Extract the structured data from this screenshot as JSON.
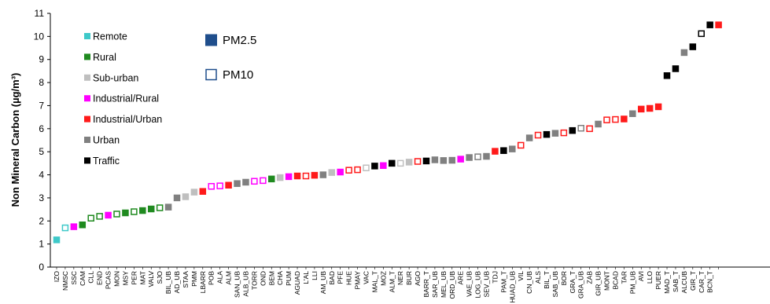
{
  "chart_data": {
    "type": "scatter",
    "ylabel": "Non Mineral Carbon (µg/m³)",
    "ylim": [
      0,
      11
    ],
    "yticks": [
      0,
      1,
      2,
      3,
      4,
      5,
      6,
      7,
      8,
      9,
      10,
      11
    ],
    "grid": false,
    "categories_legend": [
      {
        "name": "Remote",
        "color": "#3ec9c9"
      },
      {
        "name": "Rural",
        "color": "#1f8a1f"
      },
      {
        "name": "Sub-urban",
        "color": "#bfbfbf"
      },
      {
        "name": "Industrial/Rural",
        "color": "#ff00ff"
      },
      {
        "name": "Industrial/Urban",
        "color": "#ff1a1a"
      },
      {
        "name": "Urban",
        "color": "#808080"
      },
      {
        "name": "Traffic",
        "color": "#000000"
      }
    ],
    "pm_legend": [
      {
        "name": "PM2.5",
        "fill": "filled",
        "color": "#1f4e8c"
      },
      {
        "name": "PM10",
        "fill": "open",
        "color": "#1f4e8c"
      }
    ],
    "points": [
      {
        "label": "IZO",
        "y": 1.18,
        "cat": "Remote",
        "pm": "PM2.5"
      },
      {
        "label": "NMSC",
        "y": 1.7,
        "cat": "Remote",
        "pm": "PM10"
      },
      {
        "label": "SSC",
        "y": 1.75,
        "cat": "Industrial/Rural",
        "pm": "PM2.5"
      },
      {
        "label": "CAM",
        "y": 1.83,
        "cat": "Rural",
        "pm": "PM2.5"
      },
      {
        "label": "CLL",
        "y": 2.12,
        "cat": "Rural",
        "pm": "PM10"
      },
      {
        "label": "END",
        "y": 2.2,
        "cat": "Rural",
        "pm": "PM10"
      },
      {
        "label": "PCAS",
        "y": 2.25,
        "cat": "Industrial/Rural",
        "pm": "PM2.5"
      },
      {
        "label": "MON",
        "y": 2.3,
        "cat": "Rural",
        "pm": "PM10"
      },
      {
        "label": "MSY",
        "y": 2.35,
        "cat": "Rural",
        "pm": "PM2.5"
      },
      {
        "label": "PER",
        "y": 2.4,
        "cat": "Rural",
        "pm": "PM10"
      },
      {
        "label": "MAT",
        "y": 2.45,
        "cat": "Rural",
        "pm": "PM2.5"
      },
      {
        "label": "VALV",
        "y": 2.52,
        "cat": "Rural",
        "pm": "PM2.5"
      },
      {
        "label": "SJO",
        "y": 2.57,
        "cat": "Rural",
        "pm": "PM10"
      },
      {
        "label": "BIL_UB",
        "y": 2.6,
        "cat": "Urban",
        "pm": "PM2.5"
      },
      {
        "label": "AD_UB",
        "y": 3.0,
        "cat": "Urban",
        "pm": "PM2.5"
      },
      {
        "label": "STAA",
        "y": 3.05,
        "cat": "Sub-urban",
        "pm": "PM2.5"
      },
      {
        "label": "PMM",
        "y": 3.25,
        "cat": "Sub-urban",
        "pm": "PM2.5"
      },
      {
        "label": "LBARR",
        "y": 3.28,
        "cat": "Industrial/Urban",
        "pm": "PM2.5"
      },
      {
        "label": "POB",
        "y": 3.5,
        "cat": "Industrial/Rural",
        "pm": "PM10"
      },
      {
        "label": "ALA",
        "y": 3.52,
        "cat": "Industrial/Rural",
        "pm": "PM10"
      },
      {
        "label": "ALM",
        "y": 3.55,
        "cat": "Industrial/Urban",
        "pm": "PM2.5"
      },
      {
        "label": "SAN_UB",
        "y": 3.62,
        "cat": "Urban",
        "pm": "PM2.5"
      },
      {
        "label": "ALB_UB",
        "y": 3.68,
        "cat": "Urban",
        "pm": "PM2.5"
      },
      {
        "label": "TORR",
        "y": 3.72,
        "cat": "Industrial/Rural",
        "pm": "PM10"
      },
      {
        "label": "OND",
        "y": 3.75,
        "cat": "Industrial/Rural",
        "pm": "PM10"
      },
      {
        "label": "BEM",
        "y": 3.82,
        "cat": "Rural",
        "pm": "PM2.5"
      },
      {
        "label": "CHA",
        "y": 3.88,
        "cat": "Sub-urban",
        "pm": "PM2.5"
      },
      {
        "label": "PUM",
        "y": 3.92,
        "cat": "Industrial/Rural",
        "pm": "PM2.5"
      },
      {
        "label": "AGUAD",
        "y": 3.95,
        "cat": "Industrial/Urban",
        "pm": "PM2.5"
      },
      {
        "label": "L'AL",
        "y": 3.95,
        "cat": "Industrial/Urban",
        "pm": "PM10"
      },
      {
        "label": "LLI",
        "y": 3.98,
        "cat": "Industrial/Urban",
        "pm": "PM2.5"
      },
      {
        "label": "AM_UB",
        "y": 4.0,
        "cat": "Urban",
        "pm": "PM2.5"
      },
      {
        "label": "BAD",
        "y": 4.1,
        "cat": "Sub-urban",
        "pm": "PM2.5"
      },
      {
        "label": "PFE",
        "y": 4.12,
        "cat": "Industrial/Rural",
        "pm": "PM2.5"
      },
      {
        "label": "HUE",
        "y": 4.2,
        "cat": "Industrial/Urban",
        "pm": "PM10"
      },
      {
        "label": "PMAY",
        "y": 4.22,
        "cat": "Industrial/Urban",
        "pm": "PM10"
      },
      {
        "label": "VAC",
        "y": 4.3,
        "cat": "Sub-urban",
        "pm": "PM10"
      },
      {
        "label": "MAL_T",
        "y": 4.38,
        "cat": "Traffic",
        "pm": "PM2.5"
      },
      {
        "label": "MOZ",
        "y": 4.4,
        "cat": "Industrial/Rural",
        "pm": "PM2.5"
      },
      {
        "label": "ALM_T",
        "y": 4.5,
        "cat": "Traffic",
        "pm": "PM2.5"
      },
      {
        "label": "NER",
        "y": 4.5,
        "cat": "Sub-urban",
        "pm": "PM10"
      },
      {
        "label": "BUR",
        "y": 4.55,
        "cat": "Sub-urban",
        "pm": "PM2.5"
      },
      {
        "label": "AGO",
        "y": 4.58,
        "cat": "Industrial/Urban",
        "pm": "PM10"
      },
      {
        "label": "BARR_T",
        "y": 4.6,
        "cat": "Traffic",
        "pm": "PM2.5"
      },
      {
        "label": "SAR_UB",
        "y": 4.65,
        "cat": "Urban",
        "pm": "PM2.5"
      },
      {
        "label": "MEL_UB",
        "y": 4.62,
        "cat": "Urban",
        "pm": "PM2.5"
      },
      {
        "label": "ORD_UB",
        "y": 4.63,
        "cat": "Urban",
        "pm": "PM2.5"
      },
      {
        "label": "ARE",
        "y": 4.68,
        "cat": "Industrial/Rural",
        "pm": "PM2.5"
      },
      {
        "label": "VAE_UB",
        "y": 4.75,
        "cat": "Urban",
        "pm": "PM2.5"
      },
      {
        "label": "LOG_UB",
        "y": 4.78,
        "cat": "Urban",
        "pm": "PM10"
      },
      {
        "label": "SEV_UB",
        "y": 4.8,
        "cat": "Urban",
        "pm": "PM2.5"
      },
      {
        "label": "TDJ",
        "y": 5.02,
        "cat": "Industrial/Urban",
        "pm": "PM2.5"
      },
      {
        "label": "PAM_T",
        "y": 5.05,
        "cat": "Traffic",
        "pm": "PM2.5"
      },
      {
        "label": "HUAD_UB",
        "y": 5.12,
        "cat": "Urban",
        "pm": "PM2.5"
      },
      {
        "label": "VIL",
        "y": 5.28,
        "cat": "Industrial/Urban",
        "pm": "PM10"
      },
      {
        "label": "CN_UB",
        "y": 5.6,
        "cat": "Urban",
        "pm": "PM2.5"
      },
      {
        "label": "ALS",
        "y": 5.72,
        "cat": "Industrial/Urban",
        "pm": "PM10"
      },
      {
        "label": "BIL_T",
        "y": 5.75,
        "cat": "Traffic",
        "pm": "PM2.5"
      },
      {
        "label": "SAB_UB",
        "y": 5.8,
        "cat": "Urban",
        "pm": "PM2.5"
      },
      {
        "label": "BOR",
        "y": 5.82,
        "cat": "Industrial/Urban",
        "pm": "PM10"
      },
      {
        "label": "GRA_T",
        "y": 5.92,
        "cat": "Traffic",
        "pm": "PM2.5"
      },
      {
        "label": "GRA_UB",
        "y": 6.02,
        "cat": "Urban",
        "pm": "PM10"
      },
      {
        "label": "ZAB",
        "y": 6.0,
        "cat": "Industrial/Urban",
        "pm": "PM10"
      },
      {
        "label": "GIR_UB",
        "y": 6.2,
        "cat": "Urban",
        "pm": "PM2.5"
      },
      {
        "label": "MONT",
        "y": 6.38,
        "cat": "Industrial/Urban",
        "pm": "PM10"
      },
      {
        "label": "BCAD",
        "y": 6.4,
        "cat": "Industrial/Urban",
        "pm": "PM10"
      },
      {
        "label": "TAR",
        "y": 6.42,
        "cat": "Industrial/Urban",
        "pm": "PM2.5"
      },
      {
        "label": "PM_UB",
        "y": 6.65,
        "cat": "Urban",
        "pm": "PM2.5"
      },
      {
        "label": "AVI",
        "y": 6.85,
        "cat": "Industrial/Urban",
        "pm": "PM2.5"
      },
      {
        "label": "LLO",
        "y": 6.88,
        "cat": "Industrial/Urban",
        "pm": "PM2.5"
      },
      {
        "label": "PUER",
        "y": 6.95,
        "cat": "Industrial/Urban",
        "pm": "PM2.5"
      },
      {
        "label": "MAD_T",
        "y": 8.3,
        "cat": "Traffic",
        "pm": "PM2.5"
      },
      {
        "label": "SAB_T",
        "y": 8.6,
        "cat": "Traffic",
        "pm": "PM2.5"
      },
      {
        "label": "ALCUB",
        "y": 9.3,
        "cat": "Urban",
        "pm": "PM2.5"
      },
      {
        "label": "GIR_T",
        "y": 9.55,
        "cat": "Traffic",
        "pm": "PM2.5"
      },
      {
        "label": "CAR_T",
        "y": 10.12,
        "cat": "Traffic",
        "pm": "PM10"
      },
      {
        "label": "BCN_T",
        "y": 10.5,
        "cat": "Traffic",
        "pm": "PM2.5"
      },
      {
        "label": "",
        "y": 10.5,
        "cat": "Industrial/Urban",
        "pm": "PM2.5"
      }
    ]
  }
}
